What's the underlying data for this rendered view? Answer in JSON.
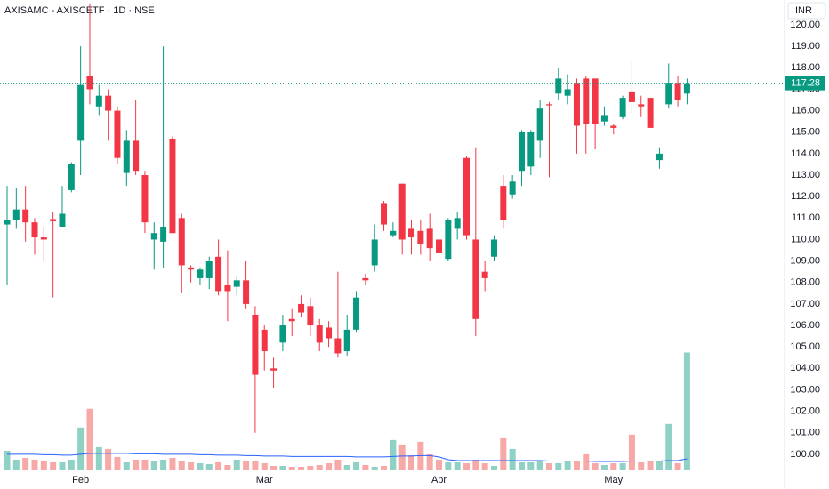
{
  "chart_data": {
    "type": "candlestick",
    "title": "AXISAMC - AXISCETF · 1D · NSE",
    "currency": "INR",
    "categories": [
      null,
      null,
      null,
      null,
      null,
      null,
      null,
      null,
      "Feb",
      null,
      null,
      null,
      null,
      null,
      null,
      null,
      null,
      null,
      null,
      null,
      null,
      null,
      null,
      null,
      null,
      null,
      null,
      null,
      "Mar",
      null,
      null,
      null,
      null,
      null,
      null,
      null,
      null,
      null,
      null,
      null,
      null,
      null,
      null,
      null,
      null,
      null,
      null,
      "Apr",
      null,
      null,
      null,
      null,
      null,
      null,
      null,
      null,
      null,
      null,
      null,
      null,
      null,
      null,
      null,
      null,
      null,
      null,
      "May",
      null,
      null,
      null,
      null,
      null,
      null,
      null,
      null
    ],
    "open": [
      110.7,
      110.9,
      111.4,
      110.8,
      110.1,
      110.95,
      110.6,
      112.3,
      114.6,
      117.6,
      116.2,
      116.7,
      116.0,
      113.1,
      114.6,
      113.0,
      110.0,
      109.9,
      114.7,
      111.0,
      108.7,
      108.2,
      108.2,
      109.2,
      107.9,
      107.8,
      108.1,
      106.5,
      105.8,
      104.0,
      105.2,
      106.3,
      107.0,
      106.9,
      106.0,
      105.9,
      105.4,
      104.8,
      105.8,
      108.2,
      108.8,
      111.7,
      110.2,
      112.6,
      110.5,
      110.4,
      110.5,
      110.0,
      109.1,
      110.5,
      113.8,
      110.0,
      108.5,
      109.2,
      112.5,
      112.1,
      113.2,
      113.4,
      114.6,
      116.3,
      116.8,
      116.7,
      117.3,
      117.5,
      117.5,
      115.5,
      115.3,
      115.7,
      116.9,
      116.3,
      116.6,
      113.7,
      116.3,
      117.3,
      116.8
    ],
    "high": [
      112.5,
      112.4,
      112.5,
      111.0,
      110.6,
      111.3,
      112.5,
      113.6,
      119.0,
      121.0,
      117.2,
      117.0,
      116.2,
      115.1,
      116.5,
      113.2,
      110.8,
      119.0,
      114.8,
      111.2,
      108.8,
      108.7,
      109.2,
      110.0,
      109.5,
      108.3,
      109.0,
      106.9,
      106.0,
      104.5,
      106.5,
      106.8,
      107.4,
      107.3,
      106.3,
      106.2,
      108.5,
      106.5,
      107.6,
      108.4,
      110.7,
      111.8,
      110.8,
      112.6,
      110.9,
      110.9,
      111.2,
      110.5,
      111.0,
      111.3,
      113.9,
      114.3,
      109.0,
      110.2,
      113.0,
      113.0,
      115.1,
      115.1,
      116.5,
      116.4,
      118.0,
      117.7,
      117.5,
      117.6,
      117.5,
      116.2,
      115.4,
      116.7,
      118.3,
      116.7,
      116.6,
      114.3,
      118.2,
      117.6,
      117.5
    ],
    "low": [
      107.9,
      110.5,
      109.9,
      109.3,
      109.0,
      107.3,
      110.6,
      112.2,
      113.0,
      116.3,
      115.8,
      114.6,
      113.5,
      112.5,
      113.0,
      110.3,
      108.6,
      108.7,
      110.3,
      107.5,
      108.0,
      107.9,
      107.7,
      107.4,
      106.2,
      107.4,
      106.8,
      101.0,
      103.9,
      103.1,
      104.8,
      105.5,
      106.4,
      105.5,
      104.8,
      105.0,
      104.5,
      104.6,
      105.7,
      107.9,
      108.5,
      110.4,
      110.1,
      109.3,
      109.3,
      109.3,
      109.0,
      108.9,
      109.0,
      110.0,
      110.0,
      105.5,
      107.6,
      109.0,
      110.5,
      111.9,
      112.5,
      113.0,
      113.8,
      112.9,
      116.5,
      116.3,
      114.0,
      114.0,
      114.2,
      115.3,
      114.9,
      115.6,
      115.9,
      115.7,
      115.2,
      113.3,
      116.1,
      116.2,
      116.3
    ],
    "close": [
      110.9,
      111.4,
      110.8,
      110.1,
      110.0,
      110.85,
      111.2,
      113.5,
      117.2,
      117.0,
      116.7,
      116.0,
      113.8,
      114.6,
      113.2,
      110.8,
      110.3,
      110.6,
      110.3,
      108.8,
      108.6,
      108.6,
      109.0,
      107.6,
      107.6,
      108.1,
      107.0,
      103.7,
      104.8,
      103.9,
      106.0,
      106.2,
      106.6,
      106.0,
      105.2,
      105.4,
      104.7,
      105.8,
      107.3,
      108.1,
      110.0,
      110.7,
      110.4,
      110.0,
      110.1,
      109.8,
      109.6,
      109.4,
      110.9,
      111.0,
      110.2,
      106.3,
      108.2,
      110.0,
      110.9,
      112.7,
      115.0,
      115.0,
      116.1,
      116.25,
      117.5,
      117.0,
      115.3,
      115.4,
      115.4,
      115.8,
      115.2,
      116.6,
      116.4,
      116.2,
      115.2,
      114.0,
      117.3,
      116.5,
      117.28
    ],
    "volume": [
      22,
      12,
      14,
      12,
      10,
      9,
      9,
      12,
      48,
      69,
      26,
      24,
      15,
      9,
      12,
      12,
      10,
      12,
      14,
      11,
      9,
      8,
      7,
      9,
      6,
      12,
      10,
      11,
      8,
      5,
      5,
      4,
      4,
      5,
      6,
      8,
      12,
      6,
      9,
      6,
      4,
      5,
      34,
      29,
      17,
      32,
      18,
      12,
      9,
      9,
      8,
      12,
      8,
      5,
      36,
      24,
      9,
      9,
      11,
      8,
      8,
      10,
      11,
      18,
      8,
      6,
      8,
      8,
      40,
      9,
      10,
      10,
      52,
      8,
      132
    ],
    "volume_ma": [
      18,
      18,
      18,
      18,
      17.5,
      17.5,
      17,
      17,
      18,
      19,
      19,
      19,
      19,
      19,
      18.5,
      18.5,
      18.5,
      18,
      18,
      18,
      18,
      17.5,
      17.5,
      17,
      17,
      17,
      16.5,
      16.5,
      16,
      16,
      16,
      15.5,
      15.5,
      15.5,
      15.5,
      15.5,
      15.5,
      15.5,
      15,
      15,
      15,
      15,
      15.5,
      16,
      16,
      16.5,
      16.5,
      15,
      12,
      11,
      11,
      11,
      11,
      11,
      11,
      11,
      11,
      11,
      11,
      10.5,
      10.5,
      10.5,
      10.5,
      10.5,
      10,
      10,
      10,
      10,
      10.5,
      10.5,
      10.5,
      10.5,
      11,
      11,
      13
    ],
    "up_color": "#089981",
    "down_color": "#f23645",
    "volume_up_color": "#8fd1c5",
    "volume_down_color": "#f7a9a7",
    "volume_ma_color": "#2962ff",
    "last_price": 117.28,
    "ylim": [
      99.21,
      121.16
    ],
    "yticks": [
      {
        "value": 100,
        "label": "100.00"
      },
      {
        "value": 101,
        "label": "101.00"
      },
      {
        "value": 102,
        "label": "102.00"
      },
      {
        "value": 103,
        "label": "103.00"
      },
      {
        "value": 104,
        "label": "104.00"
      },
      {
        "value": 105,
        "label": "105.00"
      },
      {
        "value": 106,
        "label": "106.00"
      },
      {
        "value": 107,
        "label": "107.00"
      },
      {
        "value": 108,
        "label": "108.00"
      },
      {
        "value": 109,
        "label": "109.00"
      },
      {
        "value": 110,
        "label": "110.00"
      },
      {
        "value": 111,
        "label": "111.00"
      },
      {
        "value": 112,
        "label": "112.00"
      },
      {
        "value": 113,
        "label": "113.00"
      },
      {
        "value": 114,
        "label": "114.00"
      },
      {
        "value": 115,
        "label": "115.00"
      },
      {
        "value": 116,
        "label": "116.00"
      },
      {
        "value": 117,
        "label": "117.00"
      },
      {
        "value": 118,
        "label": "118.00"
      },
      {
        "value": 119,
        "label": "119.00"
      },
      {
        "value": 120,
        "label": "120.00"
      }
    ],
    "grid": false
  }
}
